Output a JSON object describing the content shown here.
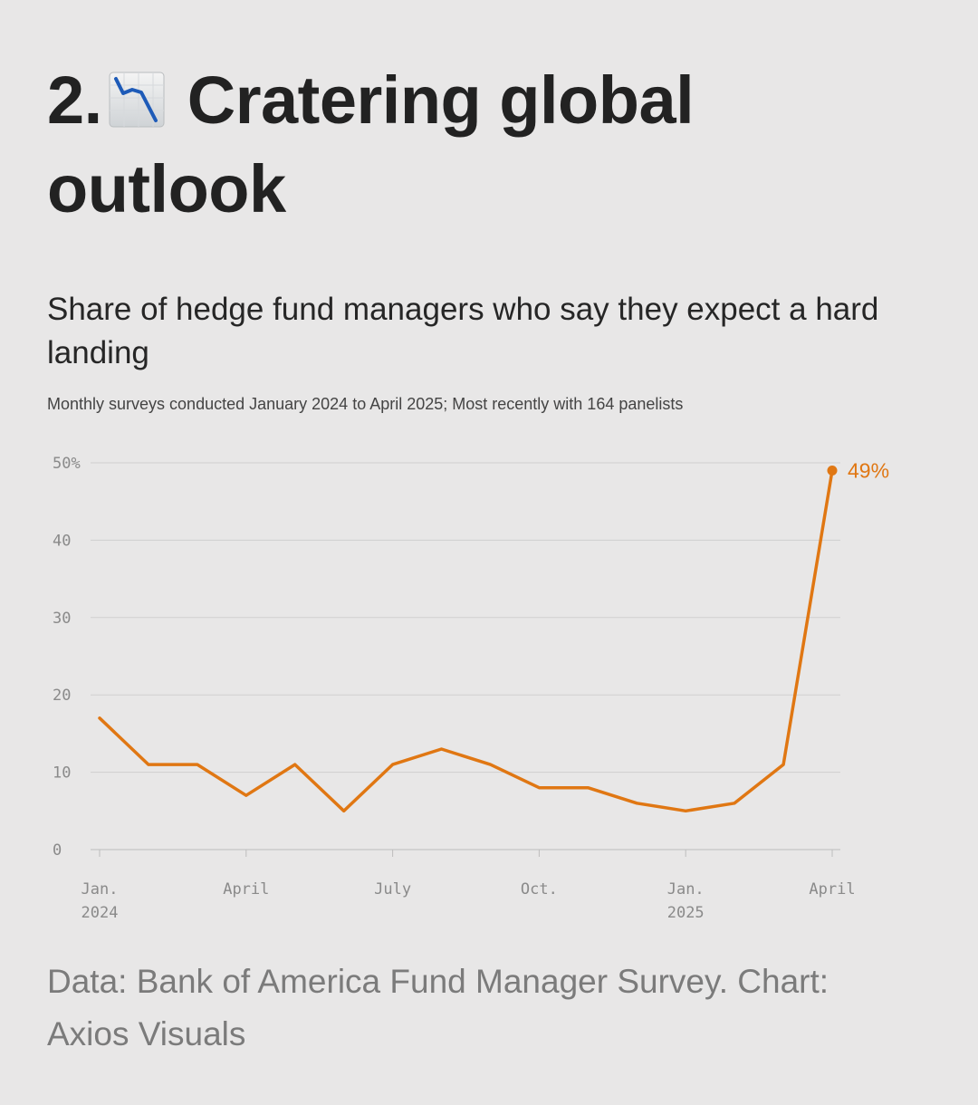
{
  "header": {
    "number": "2.",
    "emoji_icon": "chart-decreasing-emoji",
    "title": "Cratering global outlook"
  },
  "subtitle": "Share of hedge fund managers who say they expect a hard landing",
  "dek": "Monthly surveys conducted January 2024 to April 2025; Most recently with 164 panelists",
  "source": "Data: Bank of America Fund Manager Survey. Chart: Axios Visuals",
  "colors": {
    "background": "#e8e7e7",
    "line": "#e07713",
    "grid": "#cfcfcf",
    "text": "#222222",
    "muted": "#7b7b7b"
  },
  "chart_data": {
    "type": "line",
    "title": "Share of hedge fund managers who say they expect a hard landing",
    "x": [
      "2024-01",
      "2024-02",
      "2024-03",
      "2024-04",
      "2024-05",
      "2024-06",
      "2024-07",
      "2024-08",
      "2024-09",
      "2024-10",
      "2024-11",
      "2024-12",
      "2025-01",
      "2025-02",
      "2025-03",
      "2025-04"
    ],
    "series": [
      {
        "values": [
          17,
          11,
          11,
          7,
          11,
          5,
          11,
          13,
          11,
          8,
          8,
          6,
          5,
          6,
          11,
          49
        ]
      }
    ],
    "ylim": [
      0,
      50
    ],
    "y_ticks": [
      0,
      10,
      20,
      30,
      40,
      50
    ],
    "y_tick_labels": [
      "0",
      "10",
      "20",
      "30",
      "40",
      "50%"
    ],
    "x_ticks": [
      {
        "x": "2024-01",
        "line1": "Jan.",
        "line2": "2024"
      },
      {
        "x": "2024-04",
        "line1": "April",
        "line2": ""
      },
      {
        "x": "2024-07",
        "line1": "July",
        "line2": ""
      },
      {
        "x": "2024-10",
        "line1": "Oct.",
        "line2": ""
      },
      {
        "x": "2025-01",
        "line1": "Jan.",
        "line2": "2025"
      },
      {
        "x": "2025-04",
        "line1": "April",
        "line2": ""
      }
    ],
    "end_label": "49%",
    "grid": true,
    "legend": "none"
  }
}
